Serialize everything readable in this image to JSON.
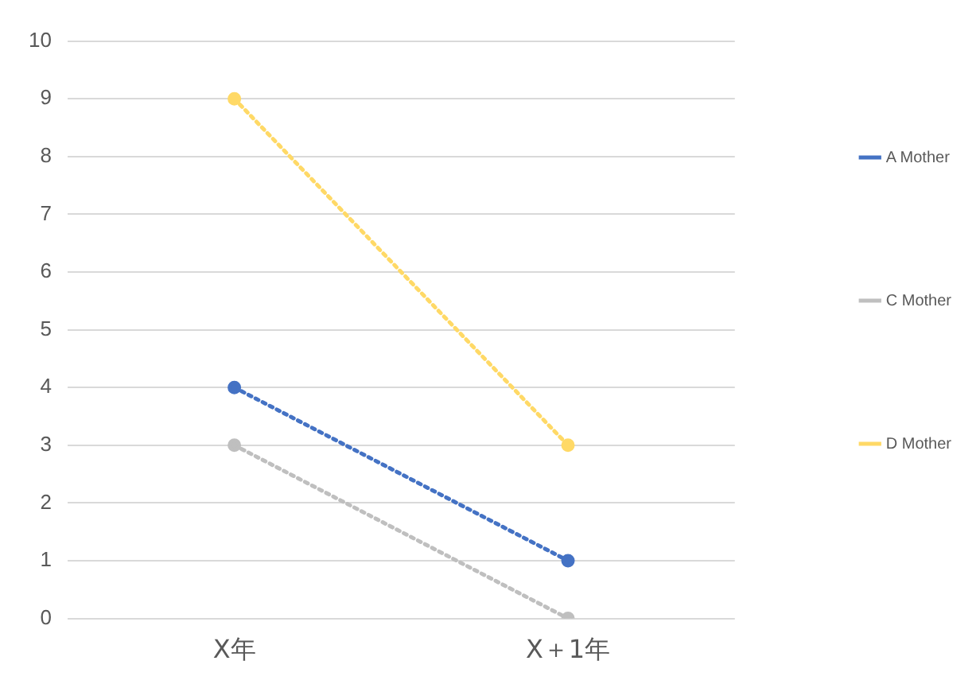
{
  "chart_data": {
    "type": "line",
    "categories": [
      "X年",
      "X＋1年"
    ],
    "series": [
      {
        "name": "A Mother",
        "color": "#4472c4",
        "values": [
          4,
          1
        ]
      },
      {
        "name": "C Mother",
        "color": "#bfbfbf",
        "values": [
          3,
          0
        ]
      },
      {
        "name": "D Mother",
        "color": "#ffd966",
        "values": [
          9,
          3
        ]
      }
    ],
    "ylim": [
      0,
      10
    ],
    "yticks": [
      0,
      1,
      2,
      3,
      4,
      5,
      6,
      7,
      8,
      9,
      10
    ],
    "grid": "y",
    "legend": "right",
    "marker": "circle",
    "line_style": "dotted"
  }
}
